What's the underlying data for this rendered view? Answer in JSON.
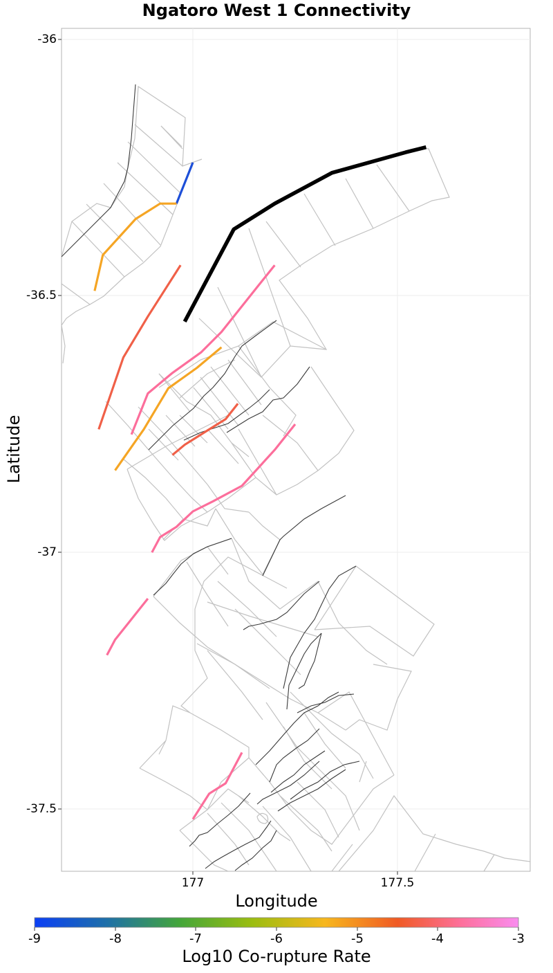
{
  "title": "Ngatoro West 1 Connectivity",
  "x_axis": {
    "label": "Longitude",
    "ticks": [
      "177",
      "177.5"
    ]
  },
  "y_axis": {
    "label": "Latitude",
    "ticks": [
      "-36",
      "-36.5",
      "-37",
      "-37.5"
    ]
  },
  "colorbar": {
    "label": "Log10 Co-rupture Rate",
    "ticks": [
      "-9",
      "-8",
      "-7",
      "-6",
      "-5",
      "-4",
      "-3"
    ],
    "colors": [
      "#0b3ff5",
      "#44a63a",
      "#62ae14",
      "#f7b71d",
      "#f05a24",
      "#fd6f9a",
      "#f98cef"
    ]
  },
  "chart_data": {
    "type": "map",
    "title": "Ngatoro West 1 Connectivity",
    "xlabel": "Longitude",
    "ylabel": "Latitude",
    "xlim": [
      176.66,
      177.8
    ],
    "ylim": [
      -37.62,
      -35.98
    ],
    "target_fault": {
      "name": "Ngatoro West 1",
      "color": "#000000",
      "trace": [
        [
          176.98,
          -36.55
        ],
        [
          177.1,
          -36.37
        ],
        [
          177.2,
          -36.32
        ],
        [
          177.34,
          -36.26
        ],
        [
          177.52,
          -36.22
        ],
        [
          177.57,
          -36.21
        ]
      ]
    },
    "corupture_faults": [
      {
        "log10_rate": -9.0,
        "color": "#1d4fd8",
        "trace": [
          [
            176.96,
            -36.32
          ],
          [
            177.0,
            -36.24
          ]
        ]
      },
      {
        "log10_rate": -5.5,
        "color": "#f5a524",
        "trace": [
          [
            176.76,
            -36.49
          ],
          [
            176.78,
            -36.42
          ],
          [
            176.86,
            -36.35
          ],
          [
            176.92,
            -36.32
          ],
          [
            176.96,
            -36.32
          ]
        ]
      },
      {
        "log10_rate": -4.2,
        "color": "#f06048",
        "trace": [
          [
            176.77,
            -36.76
          ],
          [
            176.83,
            -36.62
          ],
          [
            176.89,
            -36.54
          ],
          [
            176.97,
            -36.44
          ]
        ]
      },
      {
        "log10_rate": -3.8,
        "color": "#fc6e9b",
        "trace": [
          [
            176.85,
            -36.77
          ],
          [
            176.89,
            -36.69
          ],
          [
            176.95,
            -36.65
          ],
          [
            177.02,
            -36.61
          ],
          [
            177.07,
            -36.57
          ],
          [
            177.11,
            -36.53
          ],
          [
            177.16,
            -36.48
          ],
          [
            177.2,
            -36.44
          ]
        ]
      },
      {
        "log10_rate": -5.5,
        "color": "#f5a524",
        "trace": [
          [
            176.81,
            -36.84
          ],
          [
            176.88,
            -36.76
          ],
          [
            176.94,
            -36.68
          ],
          [
            177.01,
            -36.64
          ],
          [
            177.07,
            -36.6
          ]
        ]
      },
      {
        "log10_rate": -4.2,
        "color": "#f06048",
        "trace": [
          [
            176.95,
            -36.81
          ],
          [
            176.98,
            -36.79
          ],
          [
            177.04,
            -36.76
          ],
          [
            177.08,
            -36.74
          ],
          [
            177.11,
            -36.71
          ]
        ]
      },
      {
        "log10_rate": -3.8,
        "color": "#fc6e9b",
        "trace": [
          [
            176.9,
            -37.0
          ],
          [
            176.92,
            -36.97
          ],
          [
            176.96,
            -36.95
          ],
          [
            177.0,
            -36.92
          ],
          [
            177.05,
            -36.9
          ],
          [
            177.12,
            -36.87
          ],
          [
            177.2,
            -36.8
          ],
          [
            177.25,
            -36.75
          ]
        ]
      },
      {
        "log10_rate": -3.8,
        "color": "#fc6e9b",
        "trace": [
          [
            176.79,
            -37.2
          ],
          [
            176.81,
            -37.17
          ],
          [
            176.84,
            -37.14
          ],
          [
            176.87,
            -37.11
          ],
          [
            176.89,
            -37.09
          ]
        ]
      },
      {
        "log10_rate": -3.8,
        "color": "#fc6e9b",
        "trace": [
          [
            177.0,
            -37.52
          ],
          [
            177.04,
            -37.47
          ],
          [
            177.08,
            -37.45
          ],
          [
            177.12,
            -37.39
          ]
        ]
      }
    ],
    "colorbar_range": [
      -9,
      -3
    ]
  }
}
